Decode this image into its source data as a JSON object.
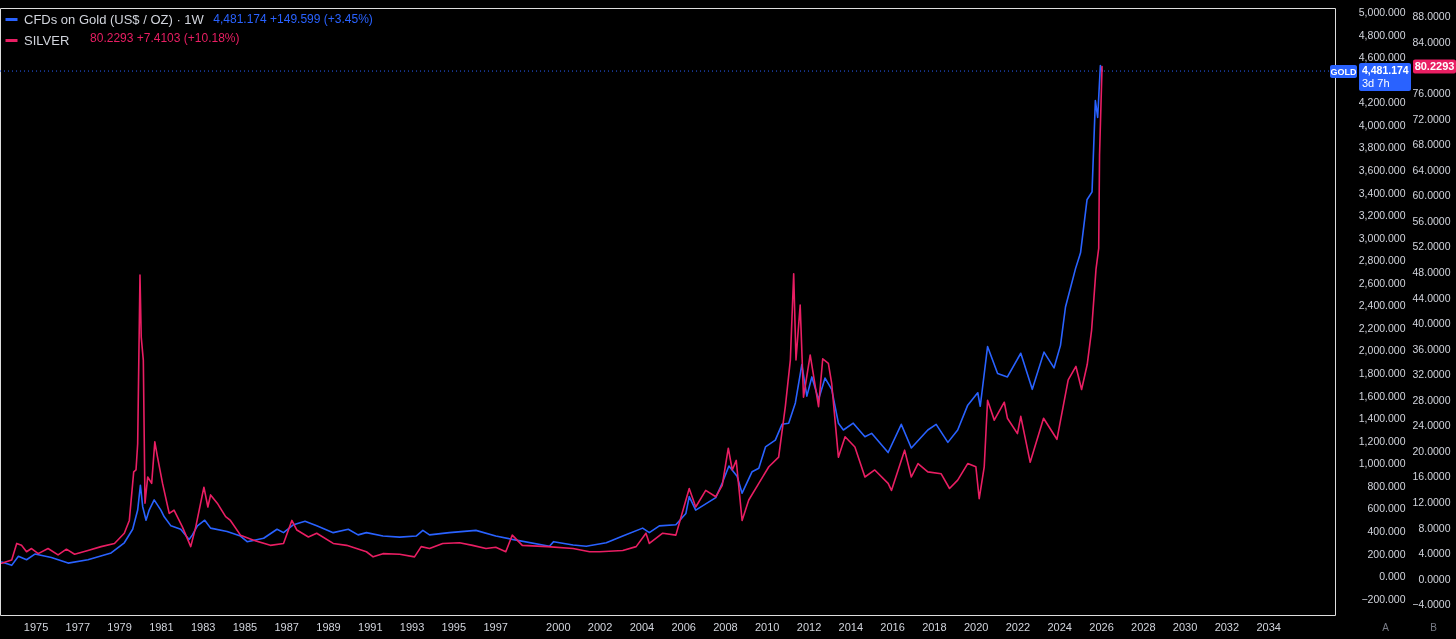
{
  "chart_data": {
    "type": "line",
    "legend": "top left",
    "line_style": "solid",
    "xlim": [
      1973.3,
      2037.2
    ],
    "xticks": [
      1975,
      1977,
      1979,
      1981,
      1983,
      1985,
      1987,
      1989,
      1991,
      1993,
      1995,
      1997,
      2000,
      2002,
      2004,
      2006,
      2008,
      2010,
      2012,
      2014,
      2016,
      2018,
      2020,
      2022,
      2024,
      2026,
      2028,
      2030,
      2032,
      2034
    ],
    "ylim": [
      -340,
      5040
    ],
    "yticks": [
      {
        "value": -200,
        "label": "−200.000"
      },
      {
        "value": 0,
        "label": "0.000"
      },
      {
        "value": 200,
        "label": "200.000"
      },
      {
        "value": 400,
        "label": "400.000"
      },
      {
        "value": 600,
        "label": "600.000"
      },
      {
        "value": 800,
        "label": "800.000"
      },
      {
        "value": 1000,
        "label": "1,000.000"
      },
      {
        "value": 1200,
        "label": "1,200.000"
      },
      {
        "value": 1400,
        "label": "1,400.000"
      },
      {
        "value": 1600,
        "label": "1,600.000"
      },
      {
        "value": 1800,
        "label": "1,800.000"
      },
      {
        "value": 2000,
        "label": "2,000.000"
      },
      {
        "value": 2200,
        "label": "2,200.000"
      },
      {
        "value": 2400,
        "label": "2,400.000"
      },
      {
        "value": 2600,
        "label": "2,600.000"
      },
      {
        "value": 2800,
        "label": "2,800.000"
      },
      {
        "value": 3000,
        "label": "3,000.000"
      },
      {
        "value": 3200,
        "label": "3,200.000"
      },
      {
        "value": 3400,
        "label": "3,400.000"
      },
      {
        "value": 3600,
        "label": "3,600.000"
      },
      {
        "value": 3800,
        "label": "3,800.000"
      },
      {
        "value": 4000,
        "label": "4,000.000"
      },
      {
        "value": 4200,
        "label": "4,200.000"
      },
      {
        "value": 4600,
        "label": "4,600.000"
      },
      {
        "value": 4800,
        "label": "4,800.000"
      },
      {
        "value": 5000,
        "label": "5,000.000"
      }
    ],
    "y2lim": [
      -5.6,
      89.4
    ],
    "y2ticks": [
      {
        "value": -4,
        "label": "−4.0000"
      },
      {
        "value": 0,
        "label": "0.0000"
      },
      {
        "value": 4,
        "label": "4.0000"
      },
      {
        "value": 8,
        "label": "8.0000"
      },
      {
        "value": 12,
        "label": "12.0000"
      },
      {
        "value": 16,
        "label": "16.0000"
      },
      {
        "value": 20,
        "label": "20.0000"
      },
      {
        "value": 24,
        "label": "24.0000"
      },
      {
        "value": 28,
        "label": "28.0000"
      },
      {
        "value": 32,
        "label": "32.0000"
      },
      {
        "value": 36,
        "label": "36.0000"
      },
      {
        "value": 40,
        "label": "40.0000"
      },
      {
        "value": 44,
        "label": "44.0000"
      },
      {
        "value": 48,
        "label": "48.0000"
      },
      {
        "value": 52,
        "label": "52.0000"
      },
      {
        "value": 56,
        "label": "56.0000"
      },
      {
        "value": 60,
        "label": "60.0000"
      },
      {
        "value": 64,
        "label": "64.0000"
      },
      {
        "value": 68,
        "label": "68.0000"
      },
      {
        "value": 72,
        "label": "72.0000"
      },
      {
        "value": 76,
        "label": "76.0000"
      },
      {
        "value": 84,
        "label": "84.0000"
      },
      {
        "value": 88,
        "label": "88.0000"
      }
    ],
    "ylabel": "A",
    "y2label": "B",
    "ref_lines": [
      {
        "axis": "y",
        "value": 4481.174,
        "label": "4,481.174",
        "color": "#2962ff",
        "line_style": "dotted"
      }
    ],
    "annotations": [
      "4,481.174 +149.599 (+3.45%)",
      "80.2293 +7.4103 (+10.18%)",
      "GOLD",
      "3d 7h",
      "80.2293"
    ],
    "series": [
      {
        "name": "CFDs on Gold (US$ / OZ) · 1W",
        "color": "#2962ff",
        "x": [
          1973.38,
          1973.86,
          1974.18,
          1974.57,
          1974.97,
          1975.76,
          1976.56,
          1977.51,
          1978.62,
          1979.25,
          1979.65,
          1979.89,
          1980.02,
          1980.13,
          1980.29,
          1980.44,
          1980.68,
          1981.0,
          1981.16,
          1981.48,
          1981.95,
          1982.35,
          1982.51,
          1982.75,
          1983.1,
          1983.38,
          1984.17,
          1984.81,
          1985.13,
          1985.92,
          1986.56,
          1986.87,
          1987.35,
          1987.9,
          1988.46,
          1989.25,
          1989.97,
          1990.44,
          1990.84,
          1991.63,
          1992.43,
          1993.22,
          1993.54,
          1993.86,
          1994.81,
          1996.08,
          1997.03,
          1997.82,
          1999.6,
          1999.8,
          2000.73,
          2001.36,
          2002.32,
          2003.11,
          2004.06,
          2004.38,
          2004.86,
          2005.65,
          2006.13,
          2006.29,
          2006.6,
          2007.56,
          2007.87,
          2008.19,
          2008.58,
          2008.82,
          2009.3,
          2009.62,
          2009.94,
          2010.41,
          2010.73,
          2011.05,
          2011.37,
          2011.68,
          2011.92,
          2012.16,
          2012.48,
          2012.79,
          2013.11,
          2013.43,
          2013.67,
          2014.14,
          2014.7,
          2015.02,
          2015.81,
          2016.44,
          2016.92,
          2017.71,
          2018.11,
          2018.67,
          2019.14,
          2019.62,
          2020.1,
          2020.22,
          2020.57,
          2021.05,
          2021.52,
          2022.16,
          2022.71,
          2023.27,
          2023.75,
          2024.06,
          2024.3,
          2024.78,
          2025.02,
          2025.33,
          2025.57,
          2025.73,
          2025.84,
          2025.97,
          2026.05
        ],
        "values": [
          130,
          100,
          180,
          150,
          200,
          170,
          120,
          150,
          210,
          300,
          420,
          590,
          810,
          620,
          500,
          590,
          680,
          590,
          530,
          450,
          420,
          330,
          370,
          450,
          500,
          430,
          400,
          360,
          310,
          340,
          420,
          390,
          460,
          490,
          450,
          390,
          420,
          370,
          390,
          360,
          350,
          360,
          410,
          370,
          390,
          410,
          360,
          330,
          270,
          310,
          280,
          270,
          300,
          360,
          430,
          390,
          450,
          460,
          560,
          710,
          590,
          700,
          830,
          980,
          890,
          740,
          930,
          960,
          1150,
          1210,
          1350,
          1360,
          1540,
          1880,
          1600,
          1770,
          1570,
          1760,
          1660,
          1360,
          1300,
          1360,
          1240,
          1270,
          1100,
          1350,
          1140,
          1300,
          1350,
          1190,
          1300,
          1520,
          1630,
          1510,
          2040,
          1800,
          1770,
          1980,
          1660,
          1990,
          1850,
          2050,
          2390,
          2730,
          2870,
          3340,
          3410,
          4220,
          4070,
          4530,
          4481.174
        ]
      },
      {
        "name": "SILVER",
        "color": "#e91e63",
        "axis": "y2",
        "x": [
          1973.38,
          1973.86,
          1974.1,
          1974.33,
          1974.57,
          1974.81,
          1975.13,
          1975.6,
          1976.08,
          1976.48,
          1976.87,
          1977.51,
          1978.14,
          1978.78,
          1979.25,
          1979.49,
          1979.7,
          1979.81,
          1979.89,
          1980.0,
          1980.06,
          1980.16,
          1980.24,
          1980.37,
          1980.56,
          1980.71,
          1980.84,
          1981.08,
          1981.4,
          1981.63,
          1982.03,
          1982.43,
          1982.67,
          1983.06,
          1983.25,
          1983.38,
          1983.7,
          1984.1,
          1984.33,
          1984.81,
          1985.44,
          1986.24,
          1986.87,
          1987.27,
          1987.51,
          1988.06,
          1988.46,
          1989.25,
          1989.89,
          1990.84,
          1991.16,
          1991.63,
          1992.43,
          1993.14,
          1993.46,
          1993.86,
          1994.49,
          1995.29,
          1995.92,
          1996.56,
          1997.03,
          1997.51,
          1997.82,
          1998.3,
          1999.5,
          2000.73,
          2001.52,
          2002.0,
          2003.11,
          2003.75,
          2004.22,
          2004.38,
          2005.02,
          2005.65,
          2006.29,
          2006.6,
          2007.08,
          2007.56,
          2007.87,
          2008.16,
          2008.35,
          2008.54,
          2008.82,
          2009.14,
          2009.62,
          2010.1,
          2010.57,
          2010.89,
          2011.13,
          2011.29,
          2011.4,
          2011.6,
          2011.76,
          2012.08,
          2012.48,
          2012.68,
          2012.95,
          2013.11,
          2013.43,
          2013.75,
          2014.22,
          2014.7,
          2015.17,
          2015.81,
          2015.97,
          2016.6,
          2016.92,
          2017.24,
          2017.71,
          2018.35,
          2018.75,
          2019.14,
          2019.62,
          2020.01,
          2020.17,
          2020.41,
          2020.57,
          2020.89,
          2021.37,
          2021.52,
          2022.0,
          2022.16,
          2022.61,
          2023.25,
          2023.89,
          2024.43,
          2024.8,
          2025.07,
          2025.34,
          2025.55,
          2025.76,
          2025.89,
          2025.93,
          2026.05
        ],
        "values": [
          2.5,
          3.0,
          5.6,
          5.3,
          4.3,
          4.8,
          4.0,
          4.8,
          3.8,
          4.7,
          3.9,
          4.5,
          5.1,
          5.6,
          7.2,
          9.2,
          16.8,
          17.1,
          21.2,
          47.6,
          37.9,
          34.3,
          11.9,
          16.0,
          15.0,
          21.5,
          19.1,
          15.0,
          10.3,
          10.8,
          8.2,
          5.1,
          8.2,
          14.4,
          11.3,
          13.2,
          11.9,
          9.8,
          9.2,
          6.9,
          6.1,
          5.3,
          5.6,
          9.2,
          7.7,
          6.6,
          7.2,
          5.6,
          5.3,
          4.3,
          3.5,
          4.0,
          3.9,
          3.5,
          5.1,
          4.8,
          5.6,
          5.7,
          5.3,
          4.8,
          5.0,
          4.3,
          6.9,
          5.3,
          5.1,
          4.8,
          4.3,
          4.3,
          4.5,
          5.1,
          7.2,
          5.6,
          7.2,
          6.9,
          14.2,
          11.3,
          13.9,
          12.9,
          14.7,
          20.5,
          17.1,
          18.6,
          9.2,
          12.4,
          15.0,
          17.6,
          19.1,
          27.0,
          34.3,
          47.8,
          34.3,
          42.9,
          28.5,
          35.1,
          27.0,
          34.5,
          33.8,
          30.6,
          19.1,
          22.3,
          20.7,
          16.0,
          17.1,
          15.0,
          13.9,
          20.2,
          16.0,
          18.1,
          16.8,
          16.5,
          14.2,
          15.5,
          18.1,
          17.6,
          12.6,
          17.6,
          28.0,
          24.9,
          27.7,
          25.2,
          22.8,
          25.5,
          18.3,
          25.2,
          21.9,
          31.2,
          33.3,
          29.7,
          33.6,
          39.0,
          48.5,
          51.8,
          66.4,
          80.2293
        ]
      }
    ]
  }
}
